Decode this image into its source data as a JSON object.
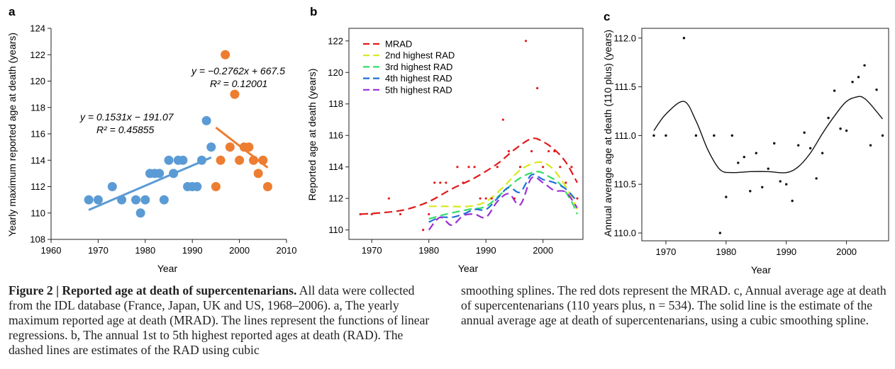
{
  "panels": {
    "a": {
      "letter": "a",
      "xlabel": "Year",
      "ylabel": "Yearly maximum reported age at death (years)",
      "xticks": [
        1960,
        1970,
        1980,
        1990,
        2000,
        2010
      ],
      "yticks": [
        108,
        110,
        112,
        114,
        116,
        118,
        120,
        122,
        124
      ],
      "eq_blue_line1": "y = 0.1531x − 191.07",
      "eq_blue_line2": "R² = 0.45855",
      "eq_orange_line1": "y = −0.2762x + 667.5",
      "eq_orange_line2": "R² = 0.12001"
    },
    "b": {
      "letter": "b",
      "xlabel": "Year",
      "ylabel": "Reported age at death (years)",
      "xticks": [
        1970,
        1980,
        1990,
        2000
      ],
      "yticks": [
        110,
        112,
        114,
        116,
        118,
        120,
        122
      ]
    },
    "c": {
      "letter": "c",
      "xlabel": "Year",
      "ylabel": "Annual average age at death (110 plus) (years)",
      "xticks": [
        1970,
        1980,
        1990,
        2000
      ],
      "yticks": [
        "110.0",
        "110.5",
        "111.0",
        "111.5",
        "112.0"
      ]
    }
  },
  "caption": {
    "fig_label": "Figure 2 | Reported age at death of supercentenarians.",
    "left_rest": " All data were collected from the IDL database (France, Japan, UK and US, 1968–2006). a, The yearly maximum reported age at death (MRAD). The lines represent the functions of linear regressions. b, The annual 1st to 5th highest reported ages at death (RAD). The dashed lines are estimates of the RAD using cubic",
    "right": "smoothing splines. The red dots represent the MRAD. c, Annual average age at death of supercentenarians (110 years plus, n = 534). The solid line is the estimate of the annual average age at death of supercentenarians, using a cubic smoothing spline."
  },
  "chart_data": [
    {
      "type": "scatter",
      "panel": "a",
      "xlabel": "Year",
      "ylabel": "Yearly maximum reported age at death (years)",
      "xlim": [
        1960,
        2010
      ],
      "ylim": [
        108,
        124
      ],
      "colors": {
        "before_1995": "#5b9bd5",
        "after_1995": "#ed7d31"
      },
      "series": [
        {
          "x": [
            1968,
            1970,
            1973,
            1975,
            1978,
            1979,
            1980,
            1981,
            1982,
            1983,
            1984,
            1985,
            1986,
            1987,
            1988,
            1989,
            1990,
            1991,
            1992,
            1993,
            1994
          ],
          "y": [
            111,
            111,
            112,
            111,
            111,
            110,
            111,
            113,
            113,
            113,
            111,
            114,
            113,
            114,
            114,
            112,
            112,
            112,
            114,
            117,
            115
          ]
        },
        {
          "x": [
            1995,
            1996,
            1997,
            1998,
            1999,
            2000,
            2001,
            2002,
            2003,
            2004,
            2005,
            2006
          ],
          "y": [
            112,
            114,
            122,
            115,
            119,
            114,
            115,
            115,
            114,
            113,
            114,
            112
          ]
        }
      ],
      "regressions": [
        {
          "slope": 0.1531,
          "intercept": -191.07,
          "x_range": [
            1968,
            1994
          ],
          "color": "#5b9bd5"
        },
        {
          "slope": -0.2762,
          "intercept": 667.5,
          "x_range": [
            1995,
            2006
          ],
          "color": "#ed7d31"
        }
      ]
    },
    {
      "type": "line",
      "panel": "b",
      "xlabel": "Year",
      "ylabel": "Reported age at death (years)",
      "xlim": [
        1966,
        2007
      ],
      "ylim": [
        109.4,
        122.8
      ],
      "legend_position": "top-left",
      "series": [
        {
          "name": "MRAD",
          "color": "#e31a1c",
          "x": [
            1968,
            1972,
            1976,
            1980,
            1984,
            1988,
            1992,
            1995,
            1998,
            2000,
            2002,
            2004,
            2006
          ],
          "y": [
            111.0,
            111.1,
            111.3,
            111.8,
            112.6,
            113.3,
            114.2,
            115.1,
            115.8,
            115.6,
            115.1,
            114.3,
            113.0
          ]
        },
        {
          "name": "2nd highest RAD",
          "color": "#d8e81a",
          "x": [
            1980,
            1983,
            1987,
            1990,
            1993,
            1996,
            1999,
            2001,
            2003,
            2005,
            2006
          ],
          "y": [
            111.5,
            111.5,
            111.5,
            111.8,
            112.7,
            113.8,
            114.3,
            114.1,
            113.3,
            112.1,
            111.3
          ]
        },
        {
          "name": "3rd highest RAD",
          "color": "#33dd66",
          "x": [
            1980,
            1983,
            1987,
            1990,
            1993,
            1996,
            1999,
            2001,
            2003,
            2005,
            2006
          ],
          "y": [
            110.7,
            111.0,
            111.3,
            111.5,
            112.4,
            113.3,
            113.7,
            113.4,
            112.9,
            111.8,
            111.0
          ]
        },
        {
          "name": "4th highest RAD",
          "color": "#1f6fd8",
          "x": [
            1980,
            1982,
            1984,
            1986,
            1988,
            1990,
            1992,
            1994,
            1996,
            1998,
            2000,
            2002,
            2004,
            2006
          ],
          "y": [
            110.5,
            110.8,
            110.8,
            111.0,
            111.3,
            111.3,
            112.0,
            112.7,
            112.4,
            113.5,
            113.2,
            113.0,
            112.6,
            111.8
          ]
        },
        {
          "name": "5th highest RAD",
          "color": "#9b2fd6",
          "x": [
            1980,
            1982,
            1984,
            1986,
            1988,
            1990,
            1992,
            1994,
            1996,
            1998,
            2000,
            2002,
            2004,
            2006
          ],
          "y": [
            110.0,
            110.8,
            110.3,
            110.9,
            111.0,
            110.8,
            111.8,
            112.3,
            111.6,
            113.3,
            113.0,
            112.5,
            112.4,
            111.4
          ]
        }
      ],
      "mrad_points": {
        "color": "#e31a1c",
        "x": [
          1968,
          1970,
          1973,
          1975,
          1979,
          1980,
          1981,
          1982,
          1983,
          1985,
          1986,
          1987,
          1988,
          1989,
          1990,
          1991,
          1992,
          1993,
          1994,
          1995,
          1996,
          1997,
          1998,
          1999,
          2000,
          2001,
          2002,
          2003,
          2004,
          2005,
          2006
        ],
        "y": [
          111,
          111,
          112,
          111,
          110,
          111,
          113,
          113,
          113,
          114,
          113,
          114,
          114,
          112,
          112,
          112,
          114,
          117,
          115,
          112,
          114,
          122,
          115,
          119,
          114,
          115,
          115,
          114,
          113,
          114,
          112
        ]
      }
    },
    {
      "type": "scatter",
      "panel": "c",
      "xlabel": "Year",
      "ylabel": "Annual average age at death (110 plus) (years)",
      "xlim": [
        1966,
        2007
      ],
      "ylim": [
        109.92,
        112.1
      ],
      "points": {
        "color": "#111111",
        "x": [
          1968,
          1970,
          1973,
          1975,
          1978,
          1980,
          1979,
          1981,
          1982,
          1983,
          1984,
          1985,
          1986,
          1987,
          1988,
          1989,
          1990,
          1991,
          1992,
          1993,
          1994,
          1995,
          1996,
          1997,
          1998,
          1999,
          2000,
          2001,
          2002,
          2003,
          2004,
          2005,
          2006
        ],
        "y": [
          111.0,
          111.0,
          112.0,
          111.0,
          111.0,
          110.37,
          110.0,
          111.0,
          110.72,
          110.78,
          110.43,
          110.82,
          110.47,
          110.66,
          110.92,
          110.53,
          110.5,
          110.33,
          110.9,
          111.03,
          110.87,
          110.56,
          110.82,
          111.18,
          111.46,
          111.07,
          111.05,
          111.55,
          111.6,
          111.72,
          110.9,
          111.47,
          111.0
        ]
      },
      "spline": {
        "color": "#111111",
        "x": [
          1968,
          1970,
          1973,
          1975,
          1977,
          1979,
          1981,
          1984,
          1987,
          1990,
          1992,
          1994,
          1996,
          1998,
          2000,
          2002,
          2003,
          2004,
          2006
        ],
        "y": [
          111.05,
          111.22,
          111.35,
          111.15,
          110.85,
          110.65,
          110.62,
          110.63,
          110.63,
          110.62,
          110.68,
          110.82,
          111.02,
          111.2,
          111.35,
          111.4,
          111.38,
          111.32,
          111.17
        ]
      }
    }
  ]
}
